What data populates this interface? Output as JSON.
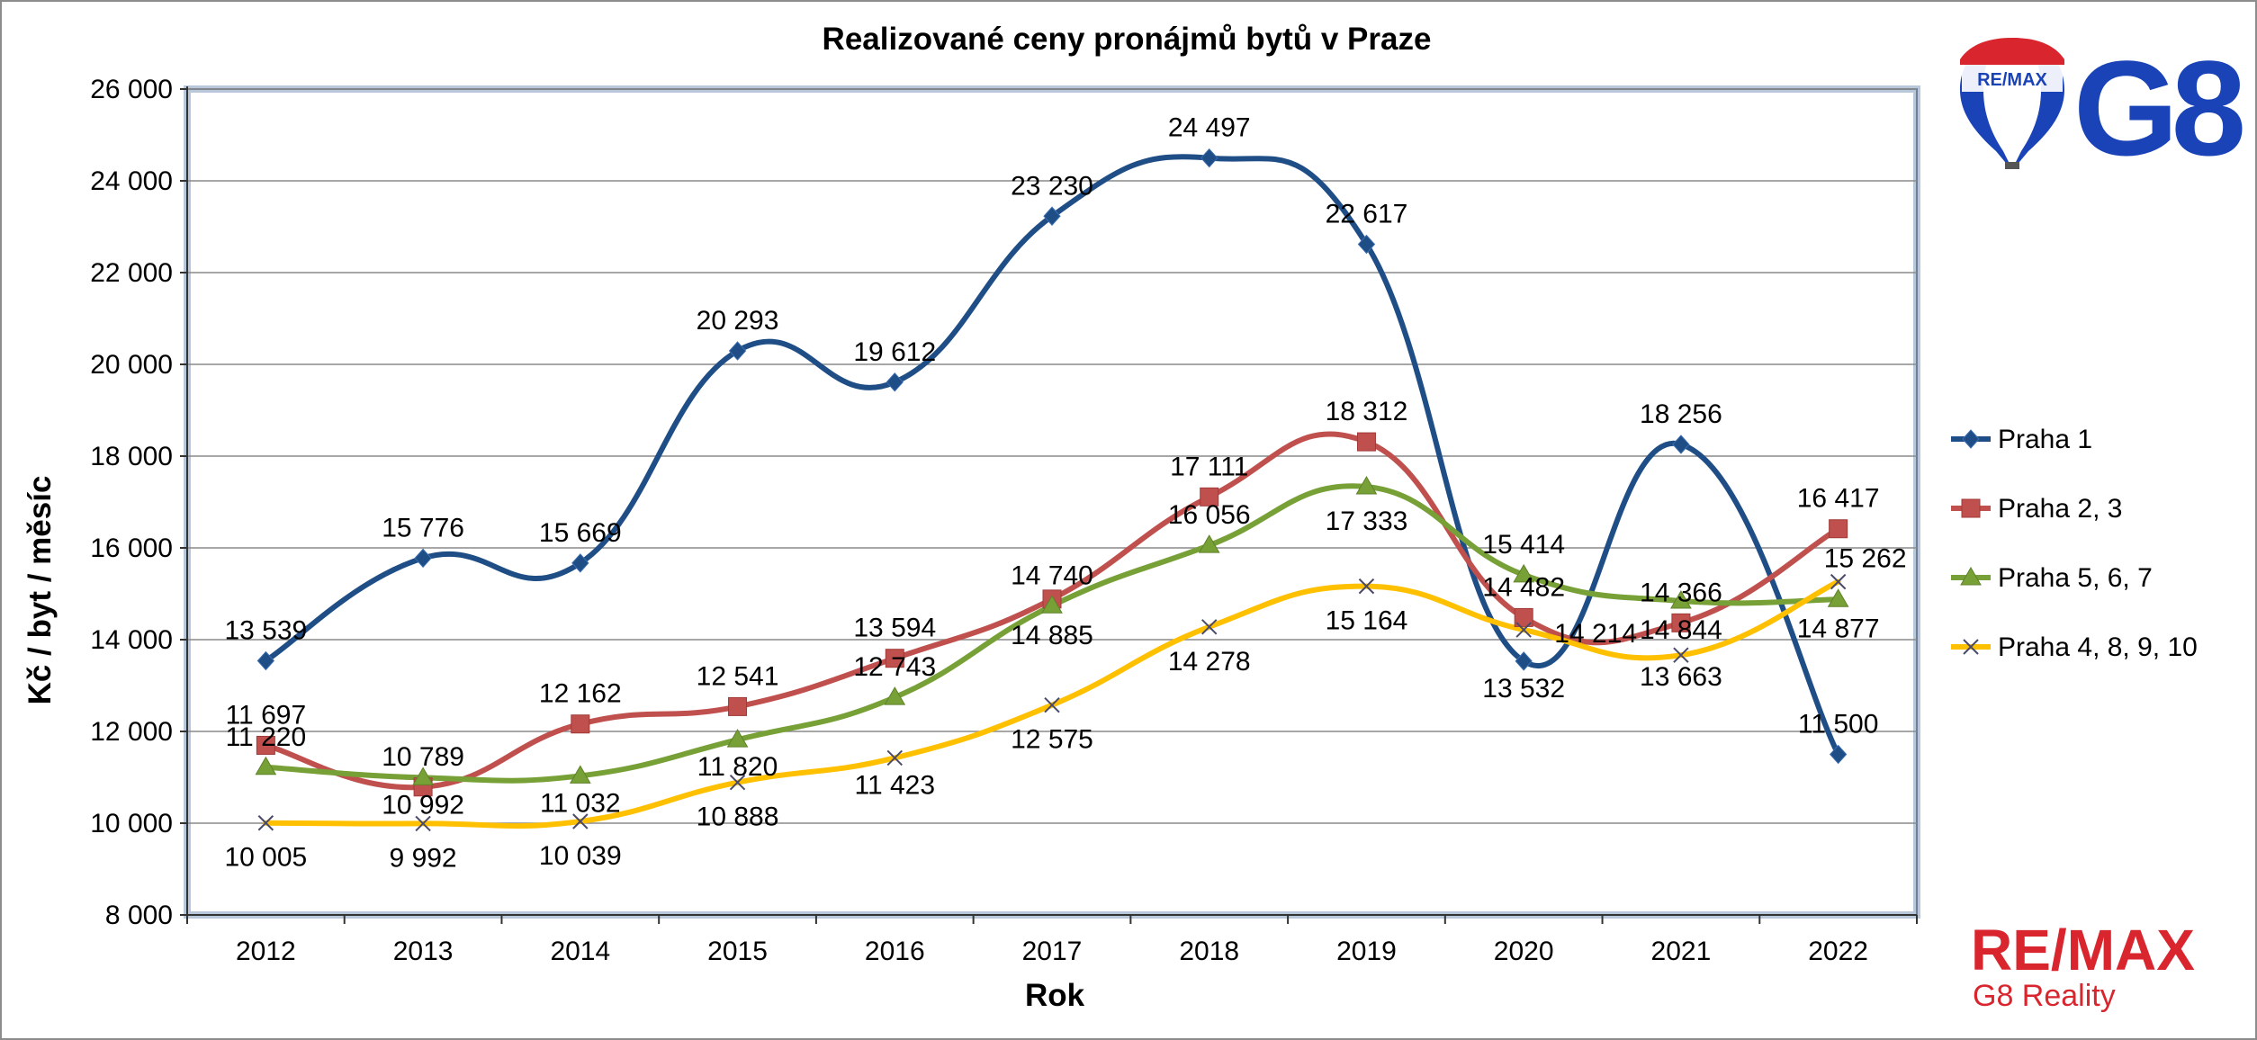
{
  "colors": {
    "Praha 1": "#1F4E87",
    "Praha 2, 3": "#C0504D",
    "Praha 5, 6, 7": "#77A037",
    "Praha 4, 8, 9, 10": "#FFC000",
    "brand_blue": "#1A43B8",
    "brand_red": "#D9262E"
  },
  "branding": {
    "balloon_text": "RE/MAX",
    "office": "G8",
    "footer_brand": "RE/MAX",
    "footer_sub": "G8 Reality"
  },
  "chart_data": {
    "type": "line",
    "title": "Realizované ceny pronájmů bytů v Praze",
    "xlabel": "Rok",
    "ylabel": "Kč / byt / měsíc",
    "ylim": [
      8000,
      26000
    ],
    "grid": true,
    "legend_position": "right",
    "categories": [
      "2012",
      "2013",
      "2014",
      "2015",
      "2016",
      "2017",
      "2018",
      "2019",
      "2020",
      "2021",
      "2022"
    ],
    "y_ticks": [
      "8 000",
      "10 000",
      "12 000",
      "14 000",
      "16 000",
      "18 000",
      "20 000",
      "22 000",
      "24 000",
      "26 000"
    ],
    "series": [
      {
        "name": "Praha 1",
        "marker": "diamond",
        "values": [
          13539,
          15776,
          15669,
          20293,
          19612,
          23230,
          24497,
          22617,
          13532,
          18256,
          11500
        ],
        "labels": [
          "13 539",
          "15 776",
          "15 669",
          "20 293",
          "19 612",
          "23 230",
          "24 497",
          "22 617",
          "13 532",
          "18 256",
          "11 500"
        ]
      },
      {
        "name": "Praha 2, 3",
        "marker": "square",
        "values": [
          11697,
          10789,
          12162,
          12541,
          13594,
          14885,
          17111,
          18312,
          14482,
          14366,
          16417
        ],
        "labels": [
          "11 697",
          "10 789",
          "12 162",
          "12 541",
          "13 594",
          "14 885",
          "17 111",
          "18 312",
          "14 482",
          "14 366",
          "16 417"
        ]
      },
      {
        "name": "Praha 5, 6, 7",
        "marker": "triangle",
        "values": [
          11220,
          10992,
          11032,
          11820,
          12743,
          14740,
          16056,
          17333,
          15414,
          14844,
          14877
        ],
        "labels": [
          "11 220",
          "10 992",
          "11 032",
          "11 820",
          "12 743",
          "14 740",
          "16 056",
          "17 333",
          "15 414",
          "14 844",
          "14 877"
        ]
      },
      {
        "name": "Praha 4, 8, 9, 10",
        "marker": "x",
        "values": [
          10005,
          9992,
          10039,
          10888,
          11423,
          12575,
          14278,
          15164,
          14214,
          13663,
          15262
        ],
        "labels": [
          "10 005",
          "9 992",
          "10 039",
          "10 888",
          "11 423",
          "12 575",
          "14 278",
          "15 164",
          "14 214",
          "13 663",
          "15 262"
        ]
      }
    ]
  }
}
